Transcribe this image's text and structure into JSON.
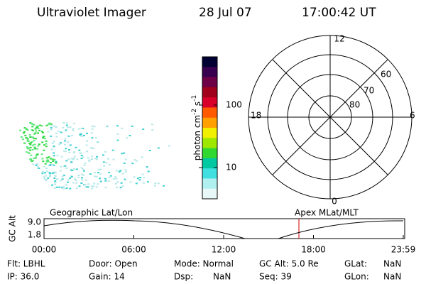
{
  "header": {
    "title": "Ultraviolet Imager",
    "date": "28 Jul 07",
    "time": "17:00:42 UT"
  },
  "colorbar": {
    "label": [
      "photon cm",
      "-2",
      "s",
      "-1"
    ],
    "ticks": [
      "100",
      "10"
    ]
  },
  "polar": {
    "labels": [
      "12",
      "18",
      "6",
      "0",
      "60",
      "70",
      "80"
    ]
  },
  "timeline": {
    "y_label": "GC Alt",
    "y_ticks": [
      "9.0",
      "1.8"
    ],
    "left_label": "Geographic Lat/Lon",
    "right_label": "Apex MLat/MLT",
    "x_ticks": [
      "00:00",
      "06:00",
      "12:00",
      "18:00",
      "23:59"
    ]
  },
  "status": {
    "rows": [
      [
        "Flt: LBHL",
        "Door: Open",
        "Mode: Normal",
        "GC Alt: 5.0 Re",
        "GLat:",
        "NaN"
      ],
      [
        "IP: 36.0",
        "Gain: 14",
        "Dsp:",
        "NaN",
        "Seq: 39",
        "GLon:",
        "NaN"
      ]
    ]
  }
}
